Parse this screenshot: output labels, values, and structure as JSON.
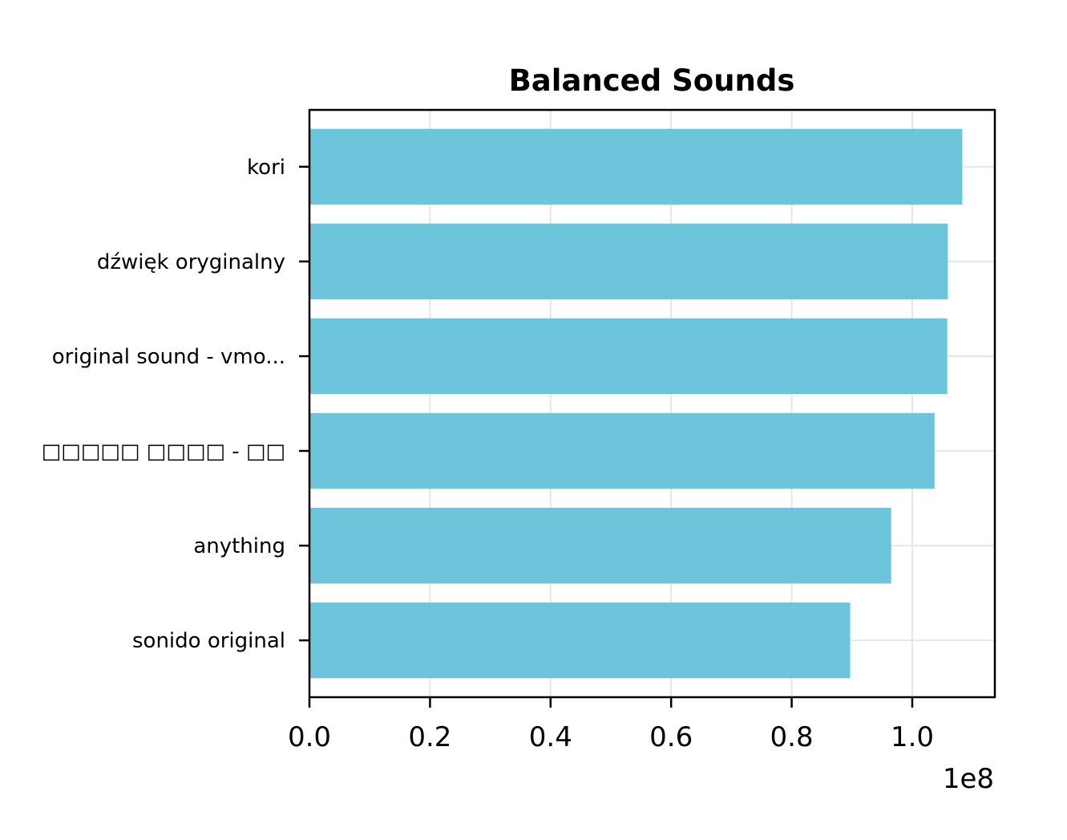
{
  "chart_data": {
    "type": "bar",
    "orientation": "horizontal",
    "title": "Balanced Sounds",
    "xlabel": "",
    "ylabel": "",
    "categories": [
      "kori",
      "dźwięk oryginalny",
      "original sound - vmo...",
      "□□□□□ □□□□ - □□",
      "anything",
      "sonido original"
    ],
    "values": [
      108300000,
      105900000,
      105800000,
      103700000,
      96500000,
      89700000
    ],
    "x_offset_label": "1e8",
    "x_ticks": [
      "0.0",
      "0.2",
      "0.4",
      "0.6",
      "0.8",
      "1.0"
    ],
    "x_tick_values": [
      0,
      20000000,
      40000000,
      60000000,
      80000000,
      100000000
    ],
    "xlim": [
      0,
      113700000
    ],
    "grid": true,
    "legend": "none",
    "bar_color": "#6cc5db",
    "grid_color": "#e6e6e6"
  }
}
